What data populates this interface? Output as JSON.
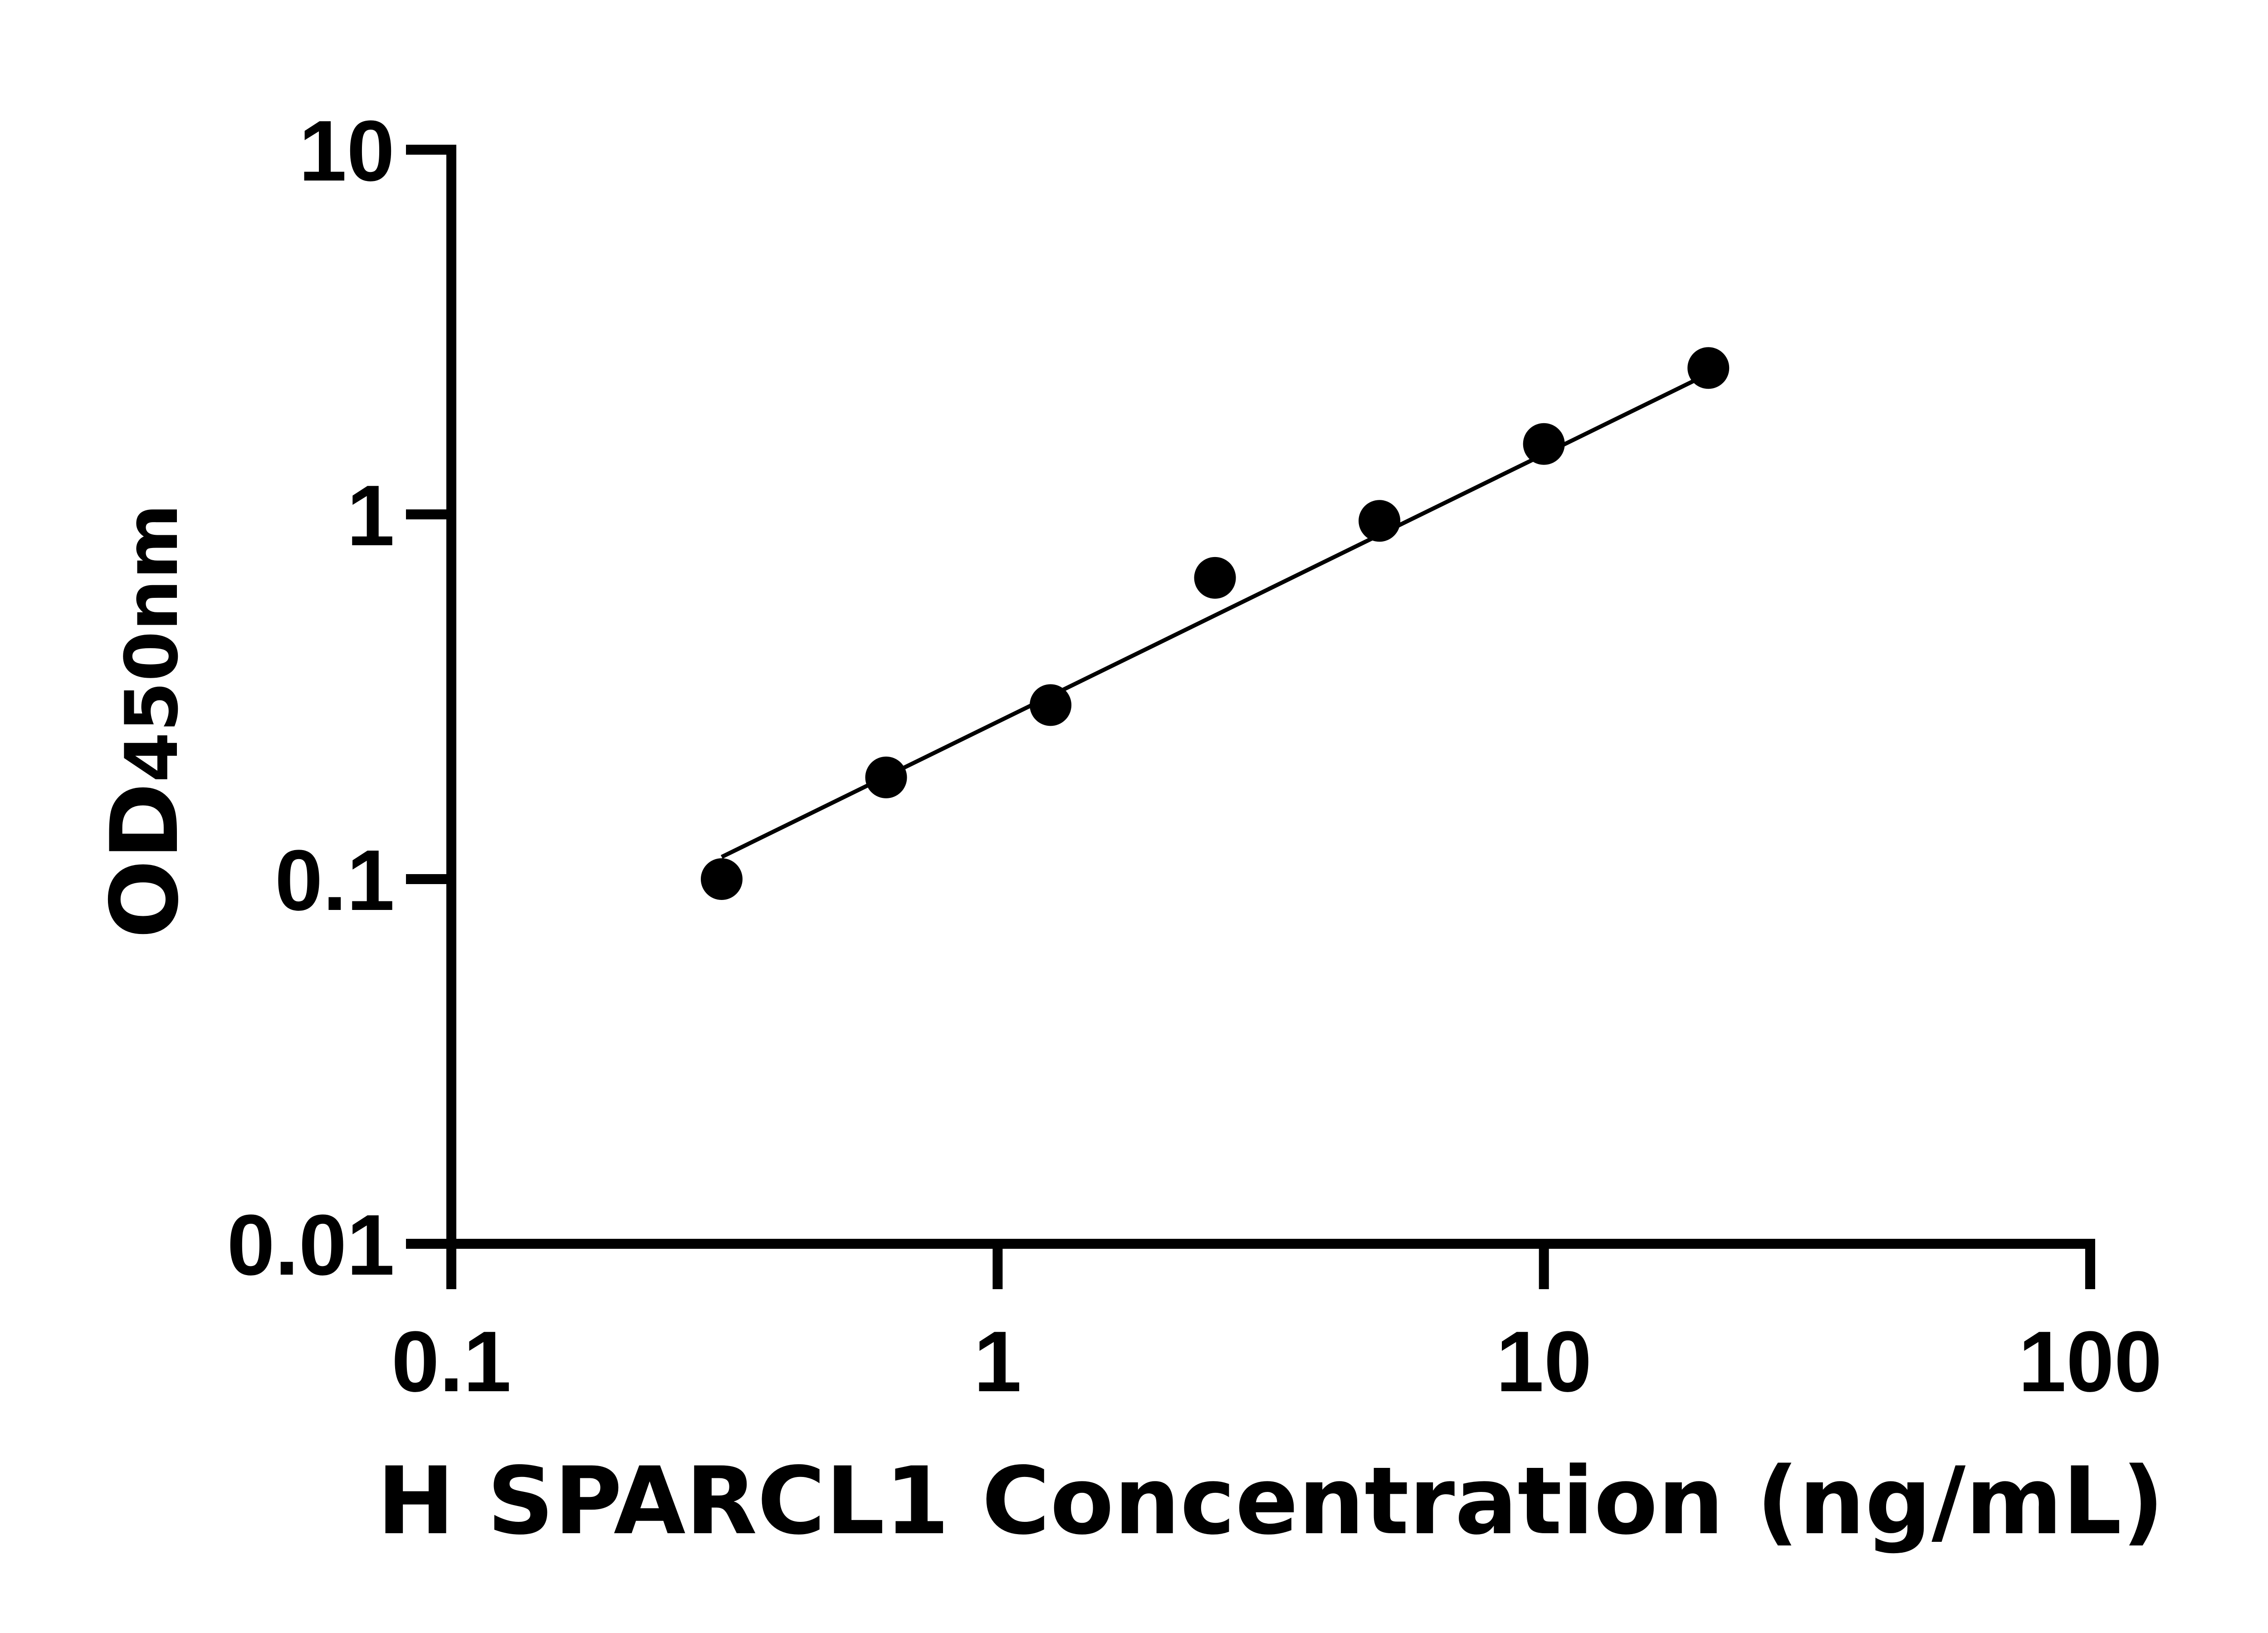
{
  "chart_data": {
    "type": "scatter",
    "title": "",
    "xlabel": "H SPARCL1 Concentration (ng/mL)",
    "ylabel_main": "OD",
    "ylabel_sub": "450nm",
    "x_scale": "log",
    "y_scale": "log",
    "xlim": [
      0.1,
      100
    ],
    "ylim": [
      0.01,
      10
    ],
    "x_ticks": [
      0.1,
      1,
      10,
      100
    ],
    "x_tick_labels": [
      "0.1",
      "1",
      "10",
      "100"
    ],
    "y_ticks": [
      0.01,
      0.1,
      1,
      10
    ],
    "y_tick_labels": [
      "0.01",
      "0.1",
      "1",
      "10"
    ],
    "grid": false,
    "legend": "none",
    "points": {
      "x": [
        0.3125,
        0.625,
        1.25,
        2.5,
        5,
        10,
        20
      ],
      "y": [
        0.1,
        0.19,
        0.3,
        0.67,
        0.96,
        1.56,
        2.52
      ]
    },
    "fit_line": {
      "x": [
        0.3125,
        20
      ],
      "y": [
        0.115,
        2.43
      ]
    },
    "colors": {
      "points": "#000000",
      "line": "#000000",
      "axes": "#000000"
    }
  }
}
